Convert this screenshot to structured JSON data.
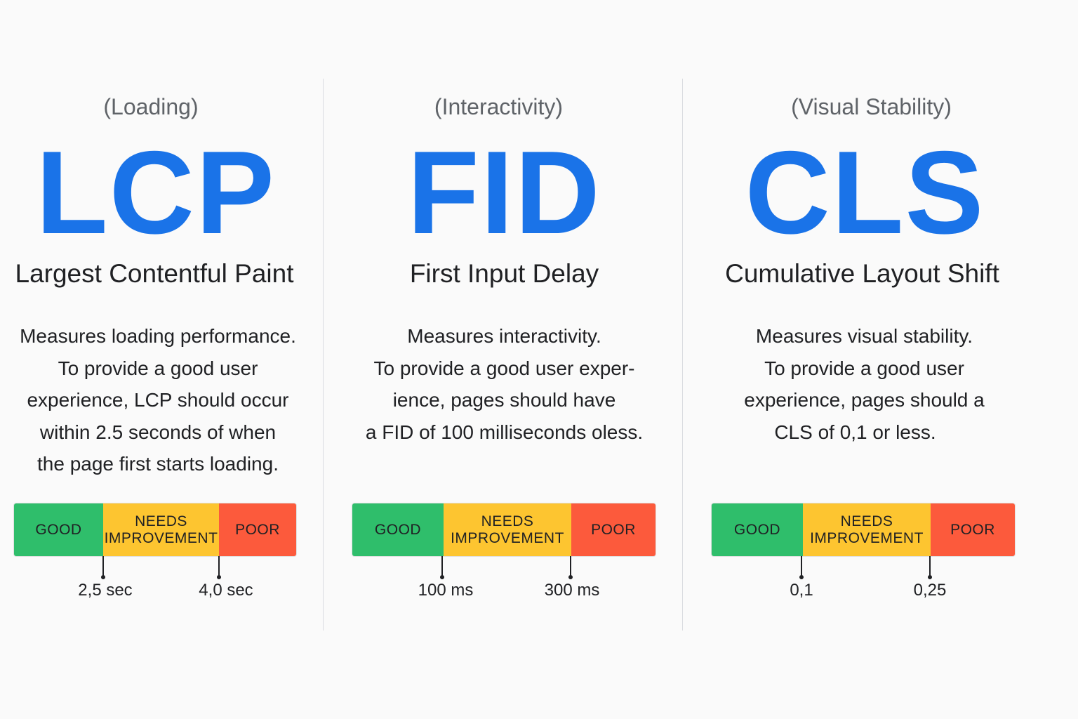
{
  "scale_labels": {
    "good": "GOOD",
    "needs_line1": "NEEDS",
    "needs_line2": "IMPROVEMENT",
    "poor": "POOR"
  },
  "colors": {
    "accent": "#1a73e8",
    "good": "#2fbe6b",
    "needs_improvement": "#fdc530",
    "poor": "#fc5a3c"
  },
  "metrics": [
    {
      "category": "(Loading)",
      "abbr": "LCP",
      "name": "Largest Contentful Paint",
      "description_lines": [
        "Measures loading performance.",
        "To provide a good user",
        "experience, LCP should occur",
        "within 2.5 seconds of when",
        "the page first starts loading."
      ],
      "thresholds": [
        "2,5 sec",
        "4,0 sec"
      ]
    },
    {
      "category": "(Interactivity)",
      "abbr": "FID",
      "name": "First Input Delay",
      "description_lines": [
        "Measures interactivity.",
        "To provide a good user exper-",
        "ience, pages should have",
        "a FID of 100 milliseconds oless."
      ],
      "thresholds": [
        "100 ms",
        "300 ms"
      ]
    },
    {
      "category": "(Visual Stability)",
      "abbr": "CLS",
      "name": "Cumulative Layout Shift",
      "description_lines": [
        "Measures visual stability.",
        "To provide a good user",
        "experience, pages should a",
        "CLS of 0,1 or less."
      ],
      "thresholds": [
        "0,1",
        "0,25"
      ]
    }
  ]
}
